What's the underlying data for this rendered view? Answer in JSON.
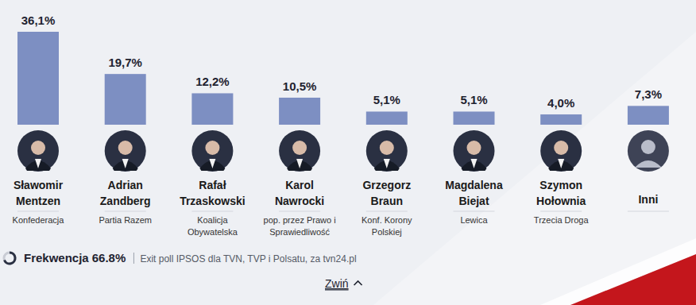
{
  "chart_data": {
    "type": "bar",
    "categories": [
      "Sławomir Mentzen",
      "Adrian Zandberg",
      "Rafał Trzaskowski",
      "Karol Nawrocki",
      "Grzegorz Braun",
      "Magdalena Biejat",
      "Szymon Hołownia",
      "Inni"
    ],
    "values": [
      36.1,
      19.7,
      12.2,
      10.5,
      5.1,
      5.1,
      4.0,
      7.3
    ],
    "value_labels": [
      "36,1%",
      "19,7%",
      "12,2%",
      "10,5%",
      "5,1%",
      "5,1%",
      "4,0%",
      "7,3%"
    ],
    "parties": [
      "Konfederacja",
      "Partia Razem",
      "Koalicja Obywatelska",
      "pop. przez Prawo i Sprawiedliwość",
      "Konf. Korony Polskiej",
      "Lewica",
      "Trzecia Droga",
      null
    ],
    "color": "#7d8fc2",
    "ylim": [
      0,
      36.1
    ],
    "data_labels": true,
    "tick_labels": false
  },
  "footer": {
    "turnout_label": "Frekwencja",
    "turnout": "66.8%",
    "source": "Exit poll IPSOS dla TVN, TVP i Polsatu, za tvn24.pl",
    "collapse": "Zwiń"
  }
}
